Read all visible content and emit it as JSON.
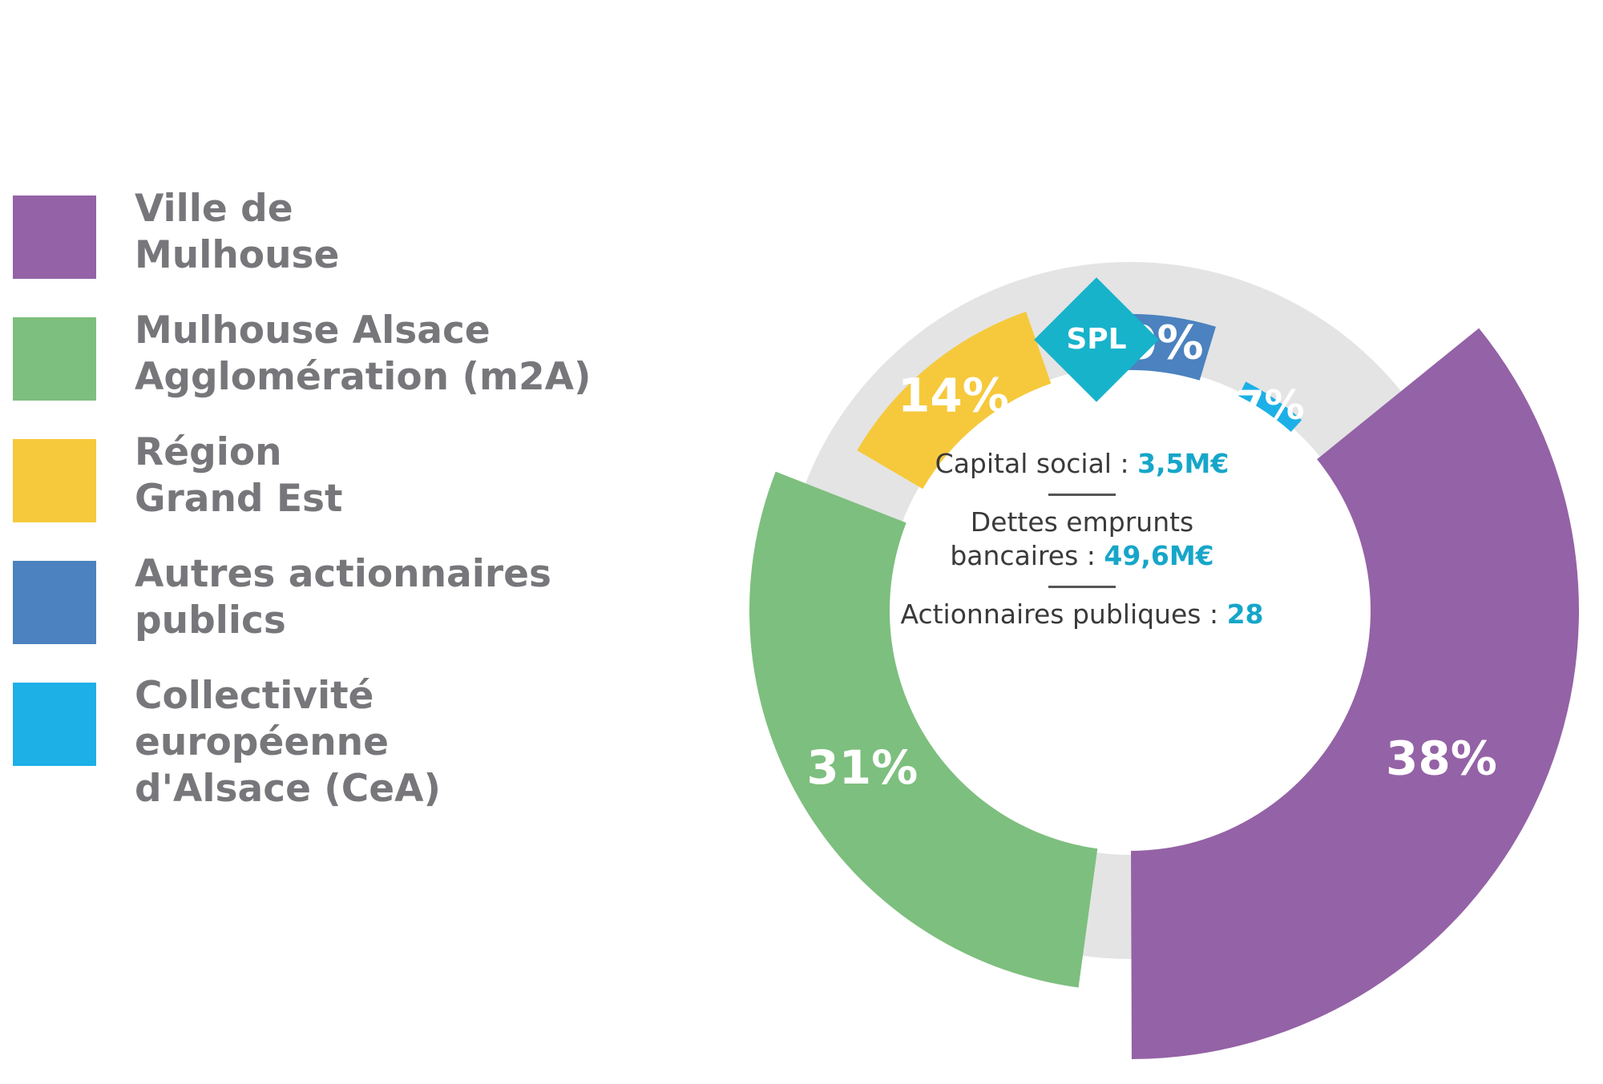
{
  "colors": {
    "ring": "#e4e4e4",
    "label_text": "#ffffff",
    "legend_text": "#77777b",
    "accent": "#16a6c9",
    "badge": "#17b3cb"
  },
  "chart_data": {
    "type": "pie",
    "variant": "donut",
    "title": "",
    "legend_position": "left",
    "series": [
      {
        "name": "Ville de\nMulhouse",
        "value": 38,
        "label": "38%",
        "color": "#9462a6"
      },
      {
        "name": "Mulhouse Alsace\nAgglomération (m2A)",
        "value": 31,
        "label": "31%",
        "color": "#7dbf7e"
      },
      {
        "name": "Région\nGrand Est",
        "value": 14,
        "label": "14%",
        "color": "#f6c93c"
      },
      {
        "name": "Autres actionnaires\npublics",
        "value": 10,
        "label": "10%",
        "color": "#4b82bf"
      },
      {
        "name": "Collectivité européenne\nd'Alsace (CeA)",
        "value": 7,
        "label": "7%",
        "color": "#1cb0e6"
      }
    ]
  },
  "center": {
    "badge": "SPL",
    "capital_label": "Capital social : ",
    "capital_value": "3,5M€",
    "debt_label_1": "Dettes emprunts",
    "debt_label_2": "bancaires : ",
    "debt_value": "49,6M€",
    "shareholders_label": "Actionnaires publiques : ",
    "shareholders_value": "28"
  }
}
